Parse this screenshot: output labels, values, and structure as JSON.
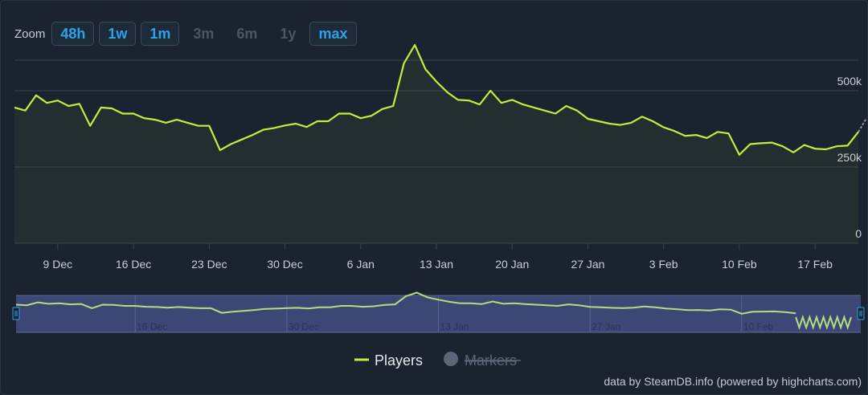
{
  "zoom": {
    "label": "Zoom",
    "buttons": [
      {
        "label": "48h",
        "enabled": true
      },
      {
        "label": "1w",
        "enabled": true
      },
      {
        "label": "1m",
        "enabled": true
      },
      {
        "label": "3m",
        "enabled": false
      },
      {
        "label": "6m",
        "enabled": false
      },
      {
        "label": "1y",
        "enabled": false
      },
      {
        "label": "max",
        "enabled": true
      }
    ]
  },
  "chart_data": {
    "type": "line",
    "x_start": "2023-12-05",
    "x_end": "2024-02-21",
    "ylim": [
      0,
      600000
    ],
    "y_ticks": [
      {
        "value": 0,
        "label": "0"
      },
      {
        "value": 250000,
        "label": "250k"
      },
      {
        "value": 500000,
        "label": "500k"
      }
    ],
    "x_ticks": [
      {
        "date": "2023-12-09",
        "label": "9 Dec"
      },
      {
        "date": "2023-12-16",
        "label": "16 Dec"
      },
      {
        "date": "2023-12-23",
        "label": "23 Dec"
      },
      {
        "date": "2023-12-30",
        "label": "30 Dec"
      },
      {
        "date": "2024-01-06",
        "label": "6 Jan"
      },
      {
        "date": "2024-01-13",
        "label": "13 Jan"
      },
      {
        "date": "2024-01-20",
        "label": "20 Jan"
      },
      {
        "date": "2024-01-27",
        "label": "27 Jan"
      },
      {
        "date": "2024-02-03",
        "label": "3 Feb"
      },
      {
        "date": "2024-02-10",
        "label": "10 Feb"
      },
      {
        "date": "2024-02-17",
        "label": "17 Feb"
      }
    ],
    "series": [
      {
        "name": "Players",
        "color": "#c5ec3b",
        "points": [
          [
            "2023-12-05",
            445000
          ],
          [
            "2023-12-06",
            435000
          ],
          [
            "2023-12-07",
            485000
          ],
          [
            "2023-12-08",
            460000
          ],
          [
            "2023-12-09",
            468000
          ],
          [
            "2023-12-10",
            450000
          ],
          [
            "2023-12-11",
            457000
          ],
          [
            "2023-12-12",
            385000
          ],
          [
            "2023-12-13",
            445000
          ],
          [
            "2023-12-14",
            442000
          ],
          [
            "2023-12-15",
            425000
          ],
          [
            "2023-12-16",
            425000
          ],
          [
            "2023-12-17",
            410000
          ],
          [
            "2023-12-18",
            405000
          ],
          [
            "2023-12-19",
            395000
          ],
          [
            "2023-12-20",
            405000
          ],
          [
            "2023-12-21",
            395000
          ],
          [
            "2023-12-22",
            385000
          ],
          [
            "2023-12-23",
            385000
          ],
          [
            "2023-12-24",
            305000
          ],
          [
            "2023-12-25",
            325000
          ],
          [
            "2023-12-26",
            340000
          ],
          [
            "2023-12-27",
            355000
          ],
          [
            "2023-12-28",
            372000
          ],
          [
            "2023-12-29",
            378000
          ],
          [
            "2023-12-30",
            386000
          ],
          [
            "2023-12-31",
            392000
          ],
          [
            "2024-01-01",
            381000
          ],
          [
            "2024-01-02",
            400000
          ],
          [
            "2024-01-03",
            400000
          ],
          [
            "2024-01-04",
            425000
          ],
          [
            "2024-01-05",
            425000
          ],
          [
            "2024-01-06",
            410000
          ],
          [
            "2024-01-07",
            418000
          ],
          [
            "2024-01-08",
            440000
          ],
          [
            "2024-01-09",
            450000
          ],
          [
            "2024-01-10",
            590000
          ],
          [
            "2024-01-11",
            650000
          ],
          [
            "2024-01-12",
            570000
          ],
          [
            "2024-01-13",
            530000
          ],
          [
            "2024-01-14",
            495000
          ],
          [
            "2024-01-15",
            470000
          ],
          [
            "2024-01-16",
            468000
          ],
          [
            "2024-01-17",
            455000
          ],
          [
            "2024-01-18",
            500000
          ],
          [
            "2024-01-19",
            460000
          ],
          [
            "2024-01-20",
            470000
          ],
          [
            "2024-01-21",
            455000
          ],
          [
            "2024-01-22",
            445000
          ],
          [
            "2024-01-23",
            435000
          ],
          [
            "2024-01-24",
            425000
          ],
          [
            "2024-01-25",
            450000
          ],
          [
            "2024-01-26",
            435000
          ],
          [
            "2024-01-27",
            408000
          ],
          [
            "2024-01-28",
            400000
          ],
          [
            "2024-01-29",
            392000
          ],
          [
            "2024-01-30",
            388000
          ],
          [
            "2024-01-31",
            395000
          ],
          [
            "2024-02-01",
            415000
          ],
          [
            "2024-02-02",
            400000
          ],
          [
            "2024-02-03",
            380000
          ],
          [
            "2024-02-04",
            368000
          ],
          [
            "2024-02-05",
            352000
          ],
          [
            "2024-02-06",
            355000
          ],
          [
            "2024-02-07",
            345000
          ],
          [
            "2024-02-08",
            365000
          ],
          [
            "2024-02-09",
            360000
          ],
          [
            "2024-02-10",
            290000
          ],
          [
            "2024-02-11",
            325000
          ],
          [
            "2024-02-12",
            328000
          ],
          [
            "2024-02-13",
            330000
          ],
          [
            "2024-02-14",
            318000
          ],
          [
            "2024-02-15",
            298000
          ],
          [
            "2024-02-16",
            322000
          ],
          [
            "2024-02-17",
            310000
          ],
          [
            "2024-02-18",
            308000
          ],
          [
            "2024-02-19",
            318000
          ],
          [
            "2024-02-20",
            320000
          ],
          [
            "2024-02-21",
            365000
          ]
        ]
      }
    ],
    "navigator": {
      "labels": [
        "16 Dec",
        "30 Dec",
        "13 Jan",
        "27 Jan",
        "10 Feb"
      ]
    },
    "legend": [
      {
        "name": "Players",
        "color": "#c5ec3b",
        "visible": true
      },
      {
        "name": "Markers",
        "color": "#5b6678",
        "visible": false
      }
    ],
    "grid": true,
    "legend_position": "bottom-center"
  },
  "credits": "data by SteamDB.info (powered by highcharts.com)"
}
